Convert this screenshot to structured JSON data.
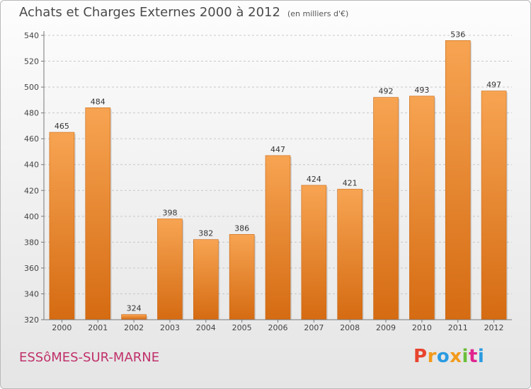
{
  "header": {
    "title": "Achats et Charges Externes 2000 à 2012",
    "unit": "(en milliers d'€)"
  },
  "footer": {
    "city": "ESSôMES-SUR-MARNE",
    "logo_text": "Proxiti",
    "logo_colors": [
      "#e8442e",
      "#f29a1b",
      "#2b9be0",
      "#f29a1b",
      "#6bbf3a",
      "#e0258f",
      "#2b9be0"
    ]
  },
  "colors": {
    "bar_top": "#f7a452",
    "bar_bottom": "#d56b12",
    "grid": "#c8c8c8"
  },
  "chart_data": {
    "type": "bar",
    "title": "Achats et Charges Externes 2000 à 2012",
    "subtitle": "(en milliers d'€)",
    "categories": [
      "2000",
      "2001",
      "2002",
      "2003",
      "2004",
      "2005",
      "2006",
      "2007",
      "2008",
      "2009",
      "2010",
      "2011",
      "2012"
    ],
    "values": [
      465,
      484,
      324,
      398,
      382,
      386,
      447,
      424,
      421,
      492,
      493,
      536,
      497
    ],
    "ylim": [
      320,
      540
    ],
    "yticks": [
      320,
      340,
      360,
      380,
      400,
      420,
      440,
      460,
      480,
      500,
      520,
      540
    ],
    "grid": true,
    "data_labels": true
  }
}
